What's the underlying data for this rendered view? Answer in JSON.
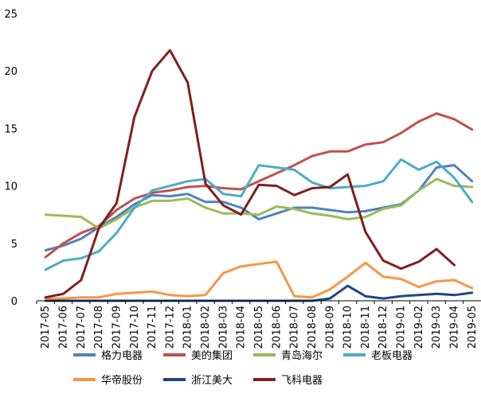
{
  "chart_data": {
    "type": "line",
    "x": [
      "2017-05",
      "2017-06",
      "2017-07",
      "2017-08",
      "2017-09",
      "2017-10",
      "2017-11",
      "2017-12",
      "2018-01",
      "2018-02",
      "2018-03",
      "2018-04",
      "2018-05",
      "2018-06",
      "2018-07",
      "2018-08",
      "2018-09",
      "2018-10",
      "2018-11",
      "2018-12",
      "2019-01",
      "2019-02",
      "2019-03",
      "2019-04",
      "2019-05"
    ],
    "ylim": [
      0,
      25
    ],
    "yticks": [
      0,
      5,
      10,
      15,
      20,
      25
    ],
    "legend_position": "bottom",
    "series": [
      {
        "name": "格力电器",
        "color": "#4f81bd",
        "values": [
          4.4,
          4.8,
          5.4,
          6.4,
          7.3,
          8.4,
          9.2,
          9.1,
          9.3,
          8.6,
          8.6,
          8.1,
          7.1,
          7.6,
          8.1,
          8.1,
          7.9,
          7.7,
          7.8,
          8.1,
          8.4,
          9.6,
          11.6,
          11.8,
          10.4
        ]
      },
      {
        "name": "美的集团",
        "color": "#c0504d",
        "values": [
          3.8,
          5.0,
          5.9,
          6.5,
          7.9,
          8.9,
          9.4,
          9.6,
          9.9,
          10.0,
          9.8,
          9.7,
          10.4,
          11.1,
          11.8,
          12.6,
          13.0,
          13.0,
          13.6,
          13.8,
          14.6,
          15.6,
          16.3,
          15.8,
          14.9
        ]
      },
      {
        "name": "青岛海尔",
        "color": "#9bbb59",
        "values": [
          7.5,
          7.4,
          7.3,
          6.3,
          7.1,
          8.1,
          8.7,
          8.7,
          8.9,
          8.1,
          7.6,
          7.6,
          7.5,
          8.2,
          8.0,
          7.6,
          7.4,
          7.1,
          7.3,
          8.0,
          8.3,
          9.6,
          10.6,
          10.0,
          9.9
        ]
      },
      {
        "name": "老板电器",
        "color": "#4bacc6",
        "values": [
          2.7,
          3.5,
          3.7,
          4.3,
          5.9,
          8.1,
          9.6,
          10.0,
          10.4,
          10.6,
          9.3,
          9.1,
          11.8,
          11.6,
          11.4,
          10.3,
          9.8,
          9.9,
          10.0,
          10.4,
          12.3,
          11.4,
          12.1,
          10.7,
          8.6
        ]
      },
      {
        "name": "华帝股份",
        "color": "#f79646",
        "values": [
          0.2,
          0.2,
          0.3,
          0.3,
          0.6,
          0.7,
          0.8,
          0.5,
          0.4,
          0.5,
          2.4,
          3.0,
          3.2,
          3.4,
          0.4,
          0.3,
          1.0,
          2.1,
          3.3,
          2.1,
          1.9,
          1.2,
          1.7,
          1.8,
          1.1
        ]
      },
      {
        "name": "浙江美大",
        "color": "#1f497d",
        "values": [
          0.0,
          0.0,
          0.0,
          0.0,
          0.0,
          0.0,
          0.0,
          0.0,
          0.0,
          0.0,
          0.0,
          0.0,
          0.0,
          0.0,
          0.0,
          0.0,
          0.2,
          1.3,
          0.4,
          0.2,
          0.4,
          0.5,
          0.6,
          0.5,
          0.7
        ]
      },
      {
        "name": "飞科电器",
        "color": "#7f1f1f",
        "values": [
          0.3,
          0.6,
          1.8,
          6.3,
          8.5,
          16.0,
          20.0,
          21.8,
          19.0,
          10.2,
          8.3,
          7.5,
          10.1,
          10.0,
          9.2,
          9.8,
          9.9,
          11.0,
          6.0,
          3.5,
          2.8,
          3.4,
          4.5,
          3.1,
          null
        ]
      }
    ]
  }
}
